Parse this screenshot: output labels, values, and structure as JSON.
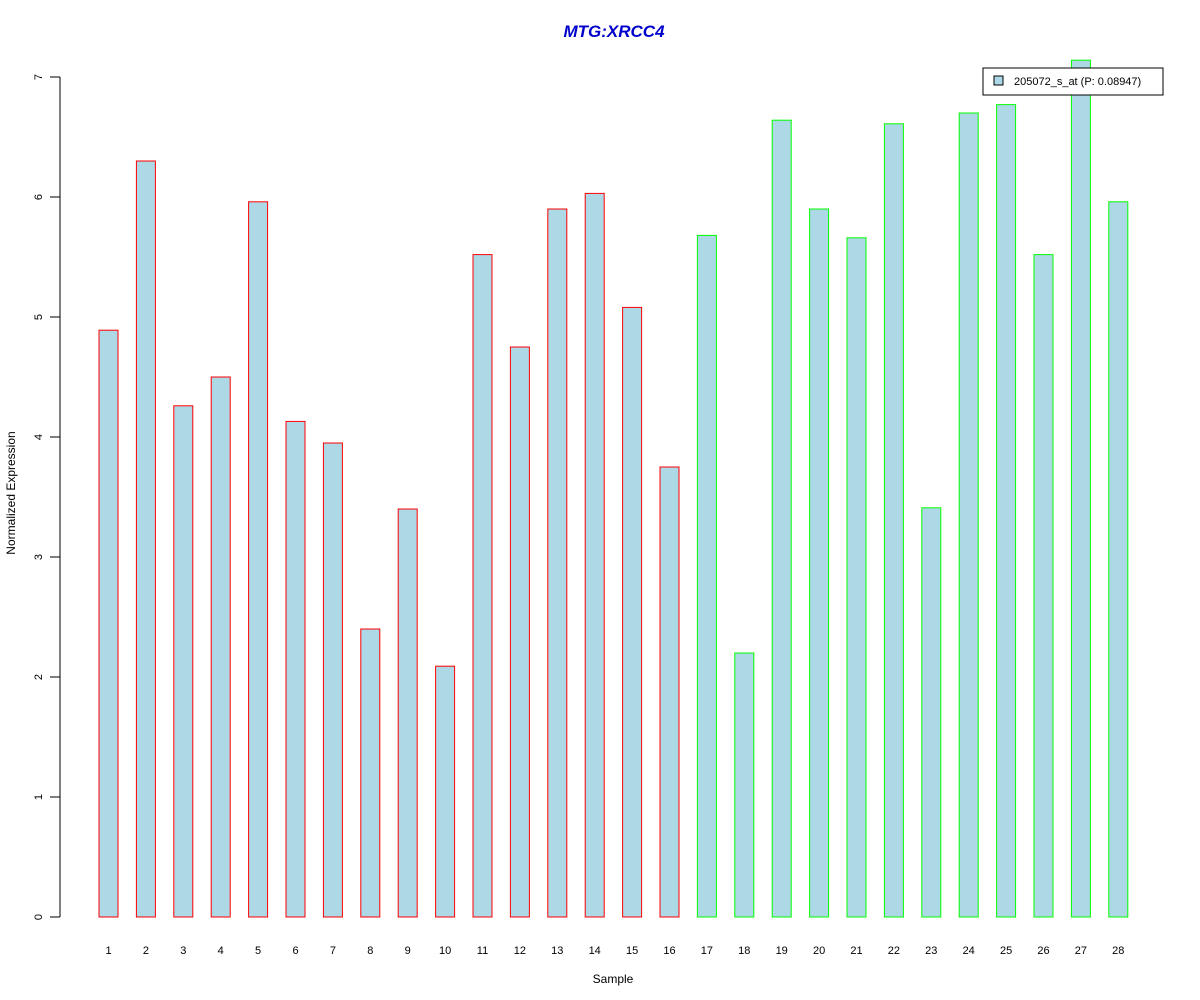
{
  "chart_data": {
    "type": "bar",
    "title": "MTG:XRCC4",
    "xlabel": "Sample",
    "ylabel": "Normalized Expression",
    "ylim": [
      0,
      7
    ],
    "yticks": [
      "0",
      "1",
      "2",
      "3",
      "4",
      "5",
      "6",
      "7"
    ],
    "categories": [
      "1",
      "2",
      "3",
      "4",
      "5",
      "6",
      "7",
      "8",
      "9",
      "10",
      "11",
      "12",
      "13",
      "14",
      "15",
      "16",
      "17",
      "18",
      "19",
      "20",
      "21",
      "22",
      "23",
      "24",
      "25",
      "26",
      "27",
      "28"
    ],
    "series": [
      {
        "name": "205072_s_at (P: 0.08947)",
        "values": [
          4.89,
          6.3,
          4.26,
          4.5,
          5.96,
          4.13,
          3.95,
          2.4,
          3.4,
          2.09,
          5.52,
          4.75,
          5.9,
          6.03,
          5.08,
          3.75,
          5.68,
          2.2,
          6.64,
          5.9,
          5.66,
          6.61,
          3.41,
          6.7,
          6.77,
          5.52,
          7.14,
          5.96
        ]
      }
    ],
    "bar_fill": "#add8e6",
    "group_outline_colors": [
      "#ff0000",
      "#ff0000",
      "#ff0000",
      "#ff0000",
      "#ff0000",
      "#ff0000",
      "#ff0000",
      "#ff0000",
      "#ff0000",
      "#ff0000",
      "#ff0000",
      "#ff0000",
      "#ff0000",
      "#ff0000",
      "#ff0000",
      "#ff0000",
      "#00ff00",
      "#00ff00",
      "#00ff00",
      "#00ff00",
      "#00ff00",
      "#00ff00",
      "#00ff00",
      "#00ff00",
      "#00ff00",
      "#00ff00",
      "#00ff00",
      "#00ff00"
    ],
    "legend_position": "top-right",
    "grid": false
  }
}
